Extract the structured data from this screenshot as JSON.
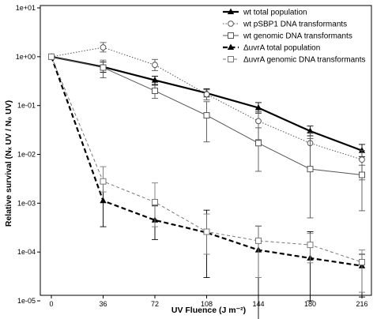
{
  "chart_data": {
    "type": "line",
    "xlabel": "UV Fluence (J m⁻²)",
    "ylabel": "Relative survival (Nₓ UV / N₀ UV)",
    "x_ticks": [
      0,
      36,
      72,
      108,
      144,
      180,
      216
    ],
    "y_ticks": [
      "1e-05",
      "1e-04",
      "1e-03",
      "1e-02",
      "1e-01",
      "1e+00",
      "1e+01"
    ],
    "y_scale": "log",
    "xlim": [
      0,
      216
    ],
    "ylim": [
      1e-05,
      10
    ],
    "grid": false,
    "legend_position": "top-right",
    "series": [
      {
        "name": "wt total population",
        "style": "solid-bold",
        "marker": "triangle-filled",
        "color": "#000000",
        "x": [
          0,
          36,
          72,
          108,
          144,
          180,
          216
        ],
        "y": [
          1.0,
          0.62,
          0.33,
          0.18,
          0.09,
          0.03,
          0.012
        ],
        "err_low": [
          1.0,
          0.48,
          0.27,
          0.15,
          0.07,
          0.024,
          0.009
        ],
        "err_high": [
          1.0,
          0.78,
          0.4,
          0.22,
          0.115,
          0.038,
          0.016
        ]
      },
      {
        "name": "wt pSBP1 DNA transformants",
        "style": "dotted",
        "marker": "circle-open",
        "color": "#555555",
        "x": [
          0,
          36,
          72,
          108,
          144,
          180,
          216
        ],
        "y": [
          1.0,
          1.55,
          0.68,
          0.17,
          0.048,
          0.017,
          0.0078
        ],
        "err_low": [
          1.0,
          1.25,
          0.52,
          0.13,
          0.02,
          0.005,
          0.003
        ],
        "err_high": [
          1.0,
          1.95,
          0.88,
          0.21,
          0.075,
          0.028,
          0.012
        ]
      },
      {
        "name": "wt genomic DNA transformants",
        "style": "solid-thin",
        "marker": "square-open",
        "color": "#555555",
        "x": [
          0,
          36,
          72,
          108,
          144,
          180,
          216
        ],
        "y": [
          1.0,
          0.6,
          0.2,
          0.063,
          0.017,
          0.005,
          0.0038
        ],
        "err_low": [
          1.0,
          0.37,
          0.14,
          0.018,
          0.0045,
          0.0005,
          0.0007
        ],
        "err_high": [
          1.0,
          0.85,
          0.26,
          0.12,
          0.035,
          0.021,
          0.006
        ]
      },
      {
        "name": "ΔuvrA total population",
        "style": "dashed-bold",
        "marker": "triangle-filled",
        "color": "#000000",
        "x": [
          0,
          36,
          72,
          108,
          144,
          180,
          216
        ],
        "y": [
          1.0,
          0.00112,
          0.00045,
          0.00025,
          0.00011,
          7.5e-05,
          5.2e-05
        ],
        "err_low": [
          1.0,
          0.00033,
          0.00018,
          3e-05,
          3.5e-06,
          1e-05,
          1.2e-05
        ],
        "err_high": [
          1.0,
          0.0028,
          0.00088,
          0.00072,
          0.00034,
          0.00026,
          9e-05
        ]
      },
      {
        "name": "ΔuvrA genomic DNA transformants",
        "style": "dashed-thin",
        "marker": "square-open",
        "color": "#777777",
        "x": [
          0,
          36,
          72,
          108,
          144,
          180,
          216
        ],
        "y": [
          1.0,
          0.0028,
          0.00105,
          0.00026,
          0.00017,
          0.00014,
          6.2e-05
        ],
        "err_low": [
          1.0,
          0.0017,
          0.00033,
          9e-05,
          3e-05,
          6e-05,
          1.5e-05
        ],
        "err_high": [
          1.0,
          0.0056,
          0.0026,
          0.0006,
          0.00034,
          0.00024,
          0.00011
        ]
      }
    ]
  }
}
